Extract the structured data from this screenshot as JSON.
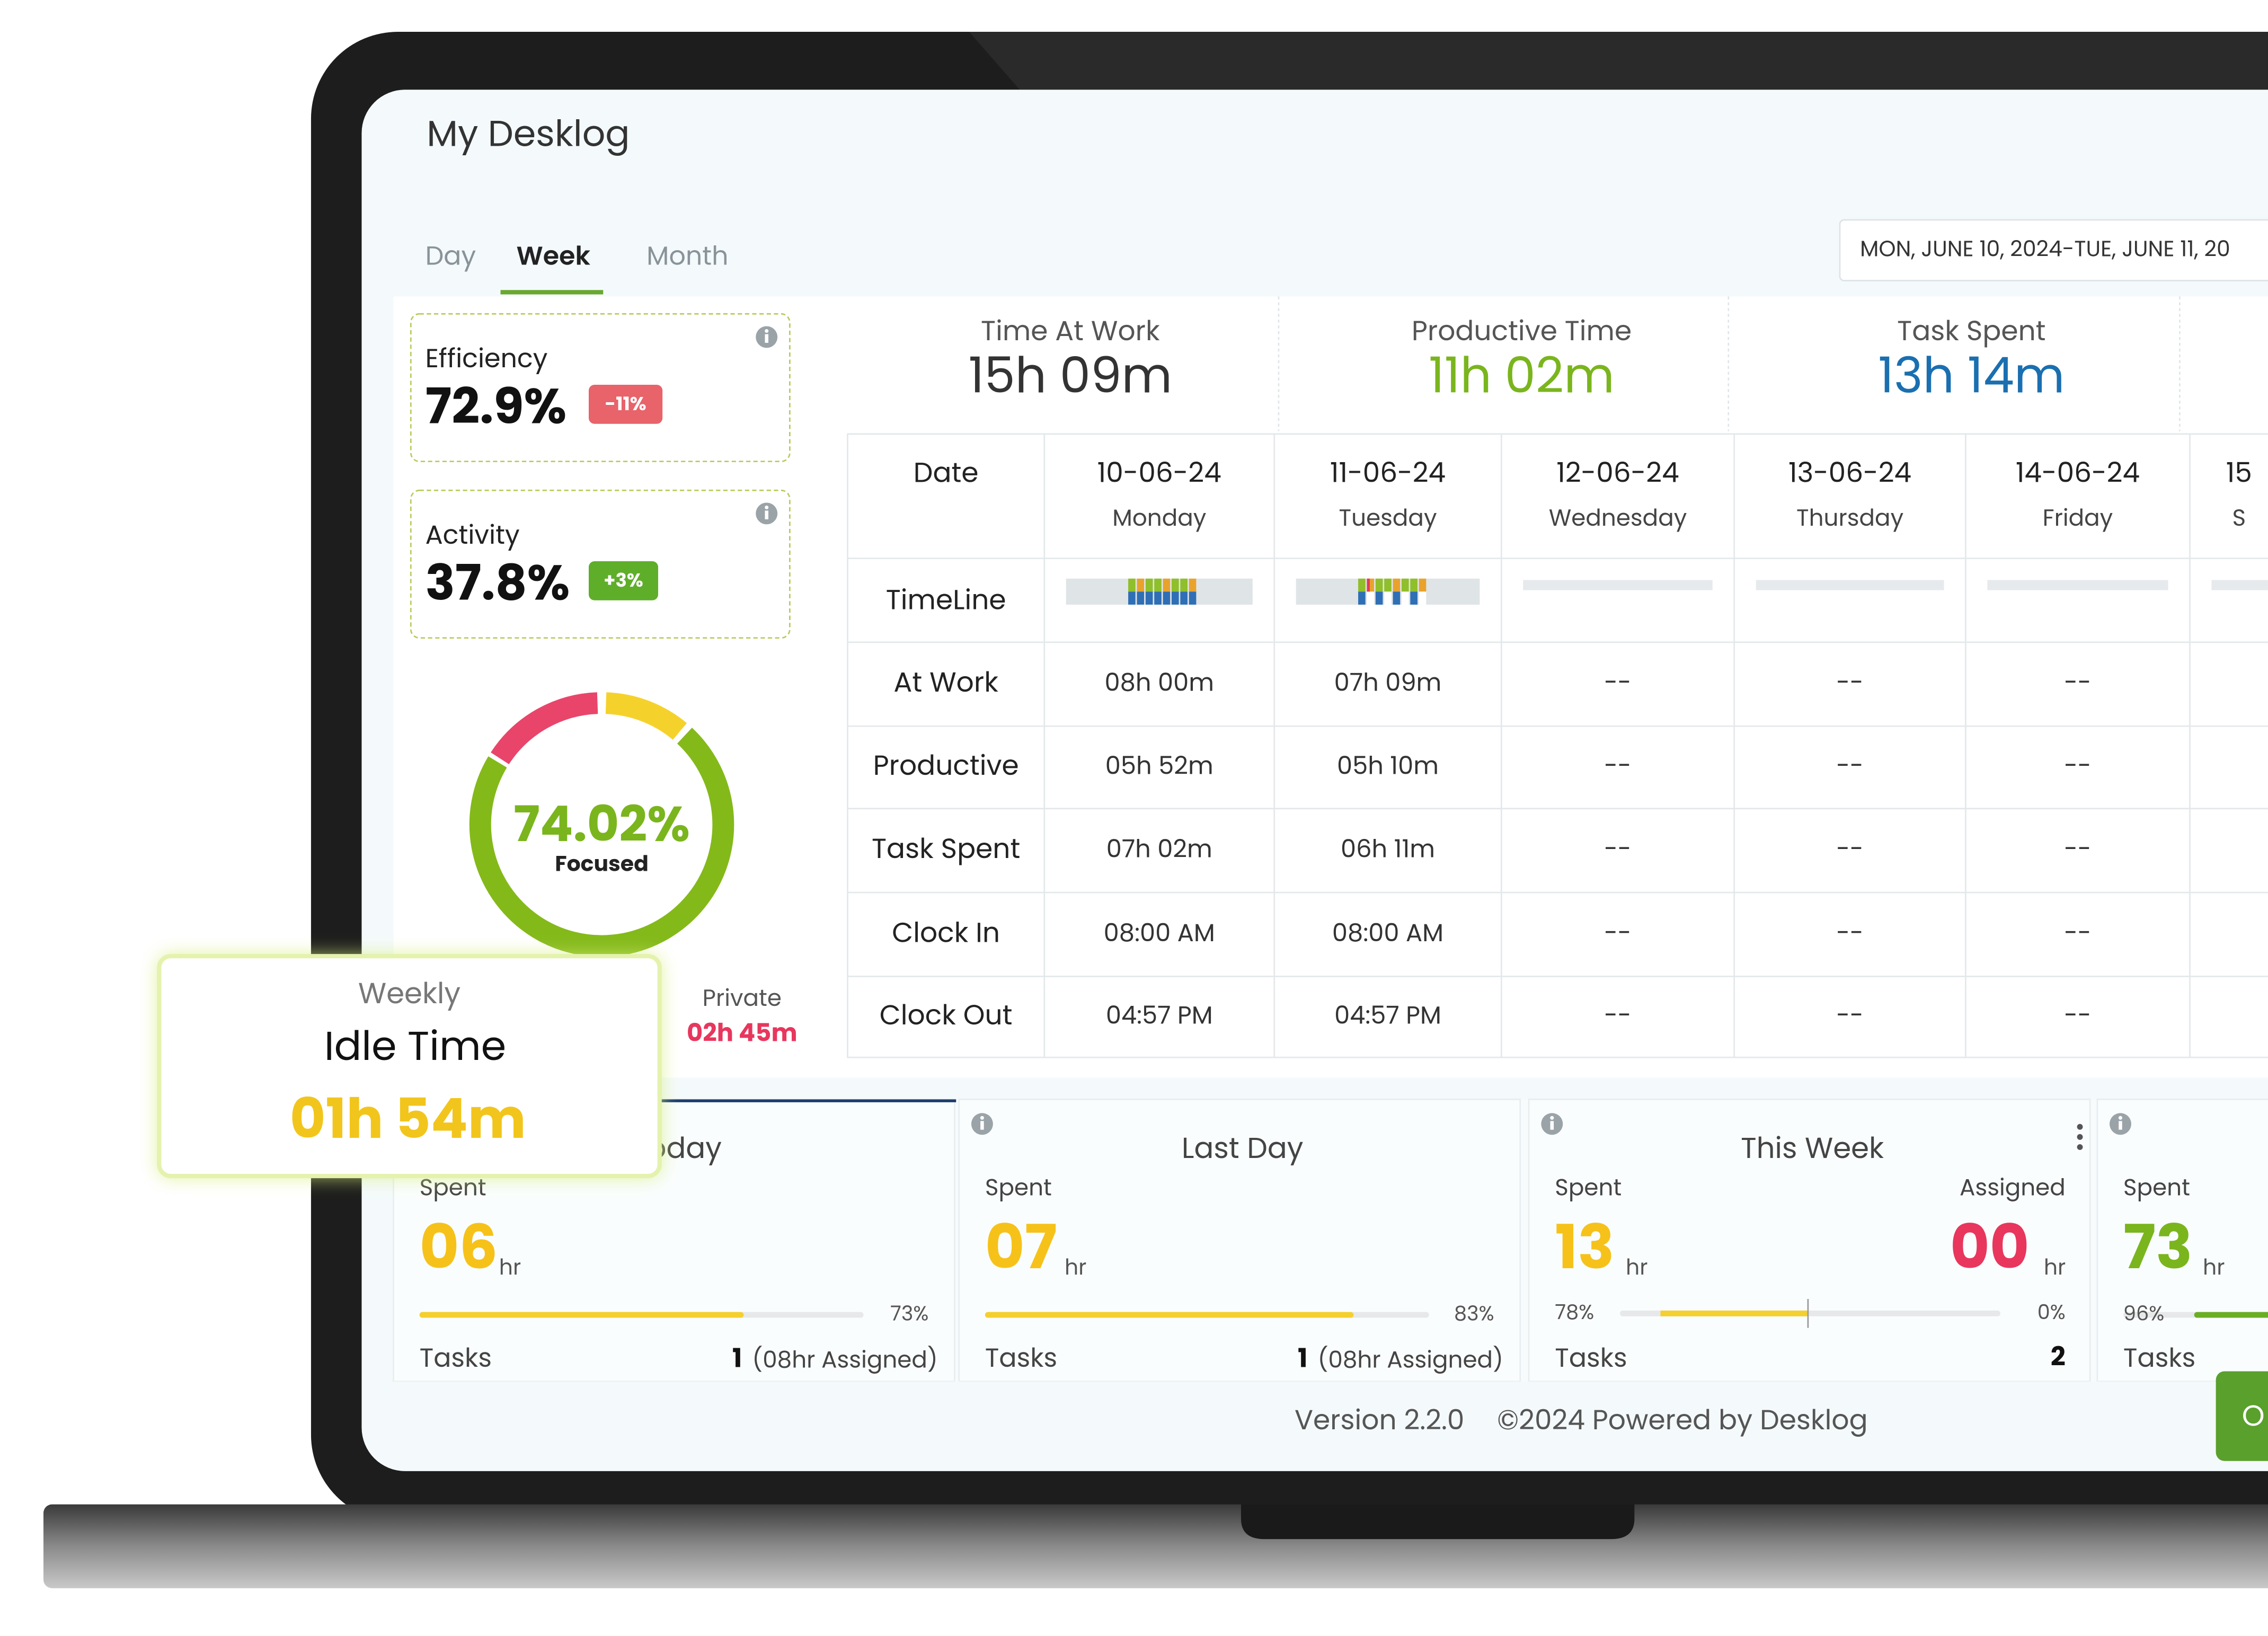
{
  "header": {
    "title": "My Desklog"
  },
  "tabs": [
    "Day",
    "Week",
    "Month"
  ],
  "date_range": "MON, JUNE 10, 2024-TUE, JUNE 11, 20",
  "cards": [
    {
      "label": "Efficiency",
      "value": "72.9%",
      "change": "-11%"
    },
    {
      "label": "Activity",
      "value": "37.8%",
      "change": "+3%"
    }
  ],
  "focus": {
    "value": "74.02%",
    "label": "Focused"
  },
  "private": {
    "label": "Private",
    "value": "02h 45m"
  },
  "idle_popup": {
    "period": "Weekly",
    "label": "Idle Time",
    "value": "01h 54m"
  },
  "summary": [
    {
      "label": "Time At Work",
      "value": "15h 09m"
    },
    {
      "label": "Productive Time",
      "value": "11h 02m"
    },
    {
      "label": "Task Spent",
      "value": "13h 14m"
    }
  ],
  "table": {
    "header": "Date",
    "columns": [
      [
        "10-06-24",
        "Monday"
      ],
      [
        "11-06-24",
        "Tuesday"
      ],
      [
        "12-06-24",
        "Wednesday"
      ],
      [
        "13-06-24",
        "Thursday"
      ],
      [
        "14-06-24",
        "Friday"
      ],
      [
        "15",
        "S"
      ]
    ],
    "timeline_label": "TimeLine",
    "rows": [
      {
        "label": "At Work",
        "values": [
          "08h 00m",
          "07h 09m",
          "--",
          "--",
          "--"
        ]
      },
      {
        "label": "Productive",
        "values": [
          "05h 52m",
          "05h 10m",
          "--",
          "--",
          "--"
        ]
      },
      {
        "label": "Task Spent",
        "values": [
          "07h 02m",
          "06h 11m",
          "--",
          "--",
          "--"
        ]
      },
      {
        "label": "Clock In",
        "values": [
          "08:00 AM",
          "08:00 AM",
          "--",
          "--",
          "--"
        ]
      },
      {
        "label": "Clock Out",
        "values": [
          "04:57 PM",
          "04:57 PM",
          "--",
          "--",
          "--"
        ]
      }
    ]
  },
  "task_cards": [
    {
      "title": "Today",
      "spent_label": "Spent",
      "spent": "06",
      "unit": "hr",
      "progress": {
        "value": 73,
        "label": "73%"
      },
      "tasks_label": "Tasks",
      "tasks": "1",
      "assigned": "(08hr Assigned)"
    },
    {
      "title": "Last Day",
      "spent_label": "Spent",
      "spent": "07",
      "unit": "hr",
      "progress": {
        "value": 83,
        "label": "83%"
      },
      "tasks_label": "Tasks",
      "tasks": "1",
      "assigned": "(08hr Assigned)"
    },
    {
      "title": "This Week",
      "spent_label": "Spent",
      "spent": "13",
      "unit": "hr",
      "assigned_label": "Assigned",
      "assigned_hours": "00",
      "assigned_unit": "hr",
      "spent_pct": "78%",
      "assigned_pct": "0%",
      "tasks_label": "Tasks",
      "tasks": "2"
    },
    {
      "spent_label": "Spent",
      "spent": "73",
      "unit": "hr",
      "progress": {
        "value": 96,
        "label": "96%"
      },
      "tasks_label": "Tasks"
    }
  ],
  "footer": {
    "version": "Version 2.2.0",
    "copyright": "©2024 Powered by Desklog"
  },
  "button": "O"
}
